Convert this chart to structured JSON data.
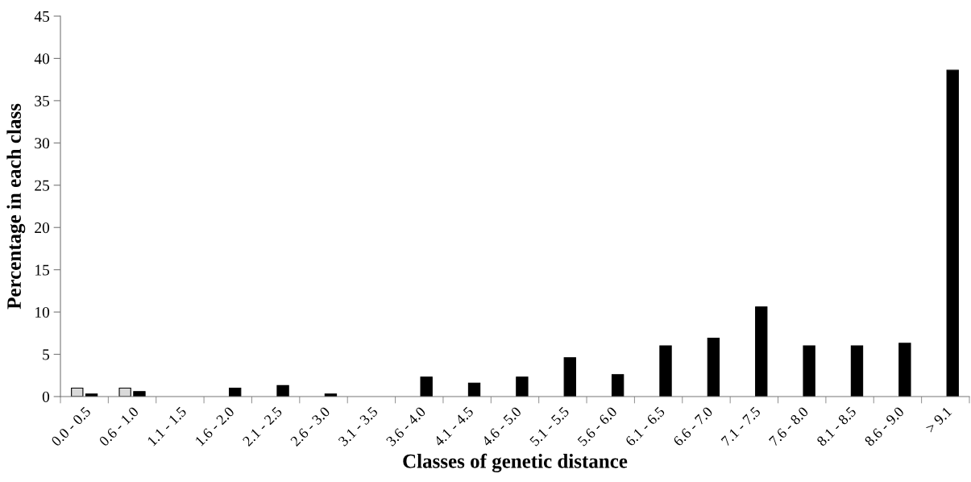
{
  "chart_data": {
    "type": "bar",
    "xlabel": "Classes of genetic distance",
    "ylabel": "Percentage in each class",
    "categories": [
      "0.0 - 0.5",
      "0.6 - 1.0",
      "1.1 - 1.5",
      "1.6 - 2.0",
      "2.1 - 2.5",
      "2.6 - 3.0",
      "3.1 - 3.5",
      "3.6 - 4.0",
      "4.1 - 4.5",
      "4.6 - 5.0",
      "5.1 - 5.5",
      "5.6 - 6.0",
      "6.1 - 6.5",
      "6.6 - 7.0",
      "7.1 - 7.5",
      "7.6 - 8.0",
      "8.1 - 8.5",
      "8.6 - 9.0",
      "> 9.1"
    ],
    "series": [
      {
        "color": "#d9d9d9",
        "values": [
          1.0,
          1.0,
          0,
          0,
          0,
          0,
          0,
          0,
          0,
          0,
          0,
          0,
          0,
          0,
          0,
          0,
          0,
          0,
          0
        ]
      },
      {
        "color": "#000000",
        "values": [
          0.3,
          0.6,
          0,
          1.0,
          1.3,
          0.3,
          0,
          2.3,
          1.6,
          2.3,
          4.6,
          2.6,
          6.0,
          6.9,
          10.6,
          6.0,
          6.0,
          6.3,
          38.6
        ]
      }
    ],
    "ylim": [
      0,
      45
    ],
    "yticks": [
      0,
      5,
      10,
      15,
      20,
      25,
      30,
      35,
      40,
      45
    ],
    "grid": false,
    "legend": false
  }
}
